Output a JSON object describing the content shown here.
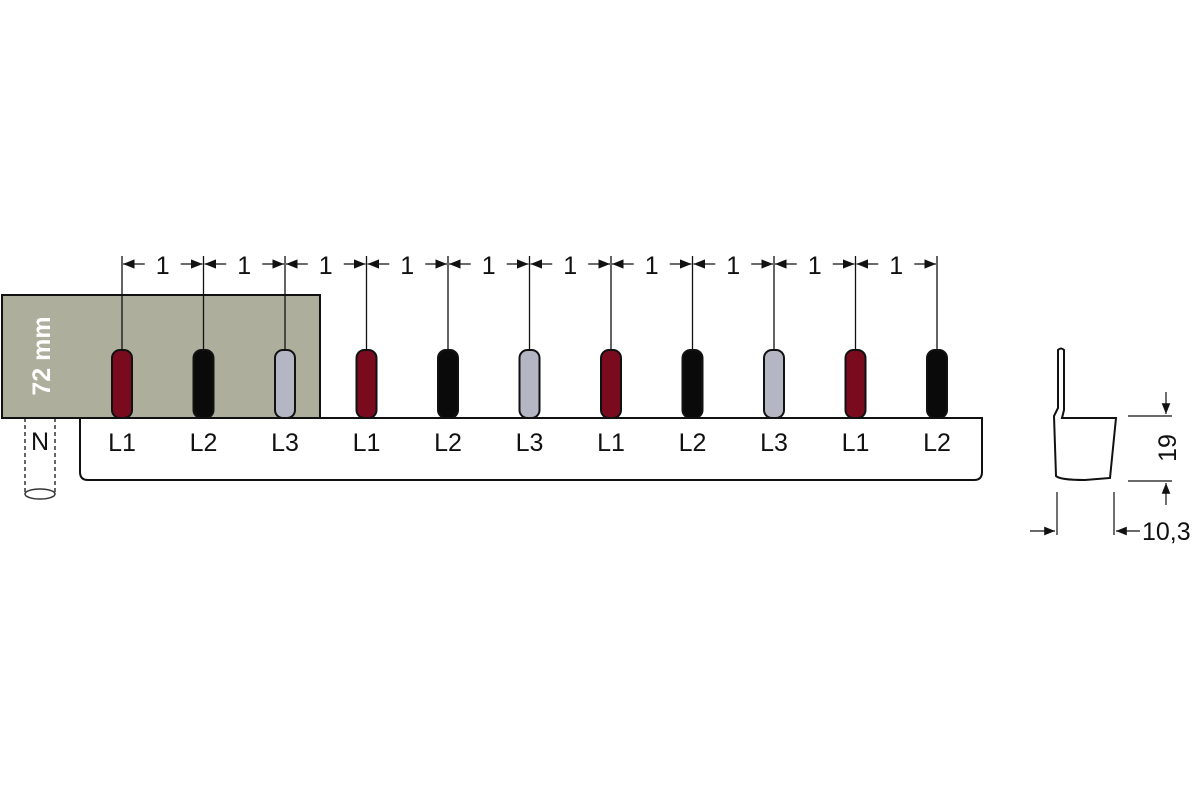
{
  "module_label": "72 mm",
  "neutral_label": "N",
  "pin_spacing_label": "1",
  "pins": [
    {
      "phase": "L1",
      "color": "#7a0b1f"
    },
    {
      "phase": "L2",
      "color": "#0a0a0a"
    },
    {
      "phase": "L3",
      "color": "#b4b6c4"
    },
    {
      "phase": "L1",
      "color": "#7a0b1f"
    },
    {
      "phase": "L2",
      "color": "#0a0a0a"
    },
    {
      "phase": "L3",
      "color": "#b4b6c4"
    },
    {
      "phase": "L1",
      "color": "#7a0b1f"
    },
    {
      "phase": "L2",
      "color": "#0a0a0a"
    },
    {
      "phase": "L3",
      "color": "#b4b6c4"
    },
    {
      "phase": "L1",
      "color": "#7a0b1f"
    },
    {
      "phase": "L2",
      "color": "#0a0a0a"
    }
  ],
  "side_view": {
    "height_label": "19",
    "width_label": "10,3"
  },
  "colors": {
    "module_fill": "#aeae9c",
    "outline": "#111111"
  }
}
